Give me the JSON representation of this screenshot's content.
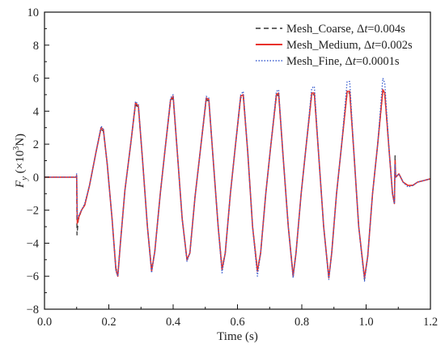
{
  "chart_data": {
    "type": "line",
    "xlabel": "Time (s)",
    "ylabel": "F_y (×10³N)",
    "ylabel_parts": {
      "sym": "F",
      "sub": "y",
      "unit_pre": " (×10",
      "sup": "3",
      "unit_post": "N)"
    },
    "xlim": [
      0.0,
      1.2
    ],
    "ylim": [
      -8,
      10
    ],
    "xticks": [
      "0.0",
      "0.2",
      "0.4",
      "0.6",
      "0.8",
      "1.0",
      "1.2"
    ],
    "yticks": [
      "−8",
      "−6",
      "−4",
      "−2",
      "0",
      "2",
      "4",
      "6",
      "8",
      "10"
    ],
    "grid": false,
    "legend_position": "top-right",
    "legend": [
      {
        "label": "Mesh_Coarse, Δt=0.004s",
        "parts": [
          "Mesh_Coarse, Δ",
          "t",
          "=0.004s"
        ],
        "color": "#333333",
        "style": "dashed"
      },
      {
        "label": "Mesh_Medium, Δt=0.002s",
        "parts": [
          "Mesh_Medium, Δ",
          "t",
          "=0.002s"
        ],
        "color": "#e8312b",
        "style": "solid"
      },
      {
        "label": "Mesh_Fine, Δt=0.0001s",
        "parts": [
          "Mesh_Fine, Δ",
          "t",
          "=0.0001s"
        ],
        "color": "#3b5fcf",
        "style": "dotted"
      }
    ],
    "series": [
      {
        "name": "Mesh_Coarse, Δt=0.004s",
        "color": "#333333",
        "style": "dashed",
        "points": [
          [
            0.0,
            0.0
          ],
          [
            0.098,
            0.0
          ],
          [
            0.1,
            0.1
          ],
          [
            0.101,
            -3.5
          ],
          [
            0.105,
            -2.6
          ],
          [
            0.115,
            -2.0
          ],
          [
            0.125,
            -1.7
          ],
          [
            0.14,
            -0.5
          ],
          [
            0.16,
            1.5
          ],
          [
            0.175,
            2.9
          ],
          [
            0.183,
            2.8
          ],
          [
            0.195,
            0.8
          ],
          [
            0.21,
            -2.5
          ],
          [
            0.222,
            -5.5
          ],
          [
            0.228,
            -5.9
          ],
          [
            0.236,
            -4.0
          ],
          [
            0.25,
            -0.8
          ],
          [
            0.268,
            2.0
          ],
          [
            0.283,
            4.4
          ],
          [
            0.292,
            4.2
          ],
          [
            0.305,
            1.0
          ],
          [
            0.32,
            -3.0
          ],
          [
            0.333,
            -5.6
          ],
          [
            0.343,
            -4.5
          ],
          [
            0.36,
            -1.0
          ],
          [
            0.375,
            1.7
          ],
          [
            0.392,
            4.6
          ],
          [
            0.4,
            4.8
          ],
          [
            0.413,
            1.5
          ],
          [
            0.428,
            -2.5
          ],
          [
            0.443,
            -5.0
          ],
          [
            0.452,
            -4.6
          ],
          [
            0.468,
            -1.2
          ],
          [
            0.485,
            1.7
          ],
          [
            0.503,
            4.7
          ],
          [
            0.511,
            4.6
          ],
          [
            0.524,
            1.2
          ],
          [
            0.54,
            -3.0
          ],
          [
            0.552,
            -5.5
          ],
          [
            0.562,
            -4.6
          ],
          [
            0.578,
            -1.0
          ],
          [
            0.593,
            1.8
          ],
          [
            0.61,
            4.8
          ],
          [
            0.618,
            4.9
          ],
          [
            0.632,
            1.5
          ],
          [
            0.647,
            -3.0
          ],
          [
            0.662,
            -5.6
          ],
          [
            0.672,
            -4.6
          ],
          [
            0.688,
            -1.0
          ],
          [
            0.703,
            1.8
          ],
          [
            0.721,
            4.9
          ],
          [
            0.728,
            5.0
          ],
          [
            0.741,
            1.5
          ],
          [
            0.758,
            -3.0
          ],
          [
            0.773,
            -5.9
          ],
          [
            0.782,
            -4.6
          ],
          [
            0.798,
            -1.0
          ],
          [
            0.813,
            1.8
          ],
          [
            0.831,
            5.0
          ],
          [
            0.839,
            5.0
          ],
          [
            0.852,
            1.5
          ],
          [
            0.868,
            -3.0
          ],
          [
            0.884,
            -6.1
          ],
          [
            0.893,
            -4.6
          ],
          [
            0.908,
            -1.0
          ],
          [
            0.923,
            1.8
          ],
          [
            0.941,
            5.1
          ],
          [
            0.949,
            5.1
          ],
          [
            0.962,
            1.5
          ],
          [
            0.977,
            -3.0
          ],
          [
            0.995,
            -6.2
          ],
          [
            1.005,
            -4.8
          ],
          [
            1.02,
            -1.0
          ],
          [
            1.036,
            2.0
          ],
          [
            1.052,
            5.2
          ],
          [
            1.058,
            5.0
          ],
          [
            1.072,
            1.5
          ],
          [
            1.082,
            -1.0
          ],
          [
            1.088,
            -1.6
          ],
          [
            1.09,
            1.3
          ],
          [
            1.092,
            0.0
          ],
          [
            1.102,
            0.2
          ],
          [
            1.115,
            -0.3
          ],
          [
            1.13,
            -0.5
          ],
          [
            1.145,
            -0.5
          ],
          [
            1.16,
            -0.3
          ],
          [
            1.18,
            -0.2
          ],
          [
            1.2,
            -0.1
          ]
        ]
      },
      {
        "name": "Mesh_Medium, Δt=0.002s",
        "color": "#e8312b",
        "style": "solid",
        "points": [
          [
            0.0,
            0.0
          ],
          [
            0.098,
            0.0
          ],
          [
            0.1,
            0.1
          ],
          [
            0.102,
            -2.8
          ],
          [
            0.107,
            -2.4
          ],
          [
            0.115,
            -2.0
          ],
          [
            0.125,
            -1.7
          ],
          [
            0.14,
            -0.5
          ],
          [
            0.16,
            1.5
          ],
          [
            0.176,
            3.0
          ],
          [
            0.183,
            2.9
          ],
          [
            0.195,
            0.8
          ],
          [
            0.21,
            -2.5
          ],
          [
            0.222,
            -5.6
          ],
          [
            0.228,
            -6.0
          ],
          [
            0.236,
            -4.0
          ],
          [
            0.25,
            -0.8
          ],
          [
            0.268,
            2.0
          ],
          [
            0.283,
            4.5
          ],
          [
            0.292,
            4.3
          ],
          [
            0.305,
            1.0
          ],
          [
            0.32,
            -3.0
          ],
          [
            0.333,
            -5.7
          ],
          [
            0.343,
            -4.5
          ],
          [
            0.36,
            -1.0
          ],
          [
            0.375,
            1.7
          ],
          [
            0.392,
            4.7
          ],
          [
            0.4,
            4.9
          ],
          [
            0.413,
            1.5
          ],
          [
            0.428,
            -2.5
          ],
          [
            0.443,
            -5.0
          ],
          [
            0.452,
            -4.6
          ],
          [
            0.468,
            -1.2
          ],
          [
            0.485,
            1.7
          ],
          [
            0.503,
            4.8
          ],
          [
            0.511,
            4.7
          ],
          [
            0.524,
            1.2
          ],
          [
            0.54,
            -3.0
          ],
          [
            0.552,
            -5.6
          ],
          [
            0.562,
            -4.6
          ],
          [
            0.578,
            -1.0
          ],
          [
            0.593,
            1.8
          ],
          [
            0.61,
            4.9
          ],
          [
            0.618,
            5.0
          ],
          [
            0.632,
            1.5
          ],
          [
            0.647,
            -3.0
          ],
          [
            0.662,
            -5.7
          ],
          [
            0.672,
            -4.6
          ],
          [
            0.688,
            -1.0
          ],
          [
            0.703,
            1.8
          ],
          [
            0.721,
            5.0
          ],
          [
            0.728,
            5.1
          ],
          [
            0.741,
            1.5
          ],
          [
            0.758,
            -3.0
          ],
          [
            0.773,
            -6.0
          ],
          [
            0.782,
            -4.6
          ],
          [
            0.798,
            -1.0
          ],
          [
            0.813,
            1.8
          ],
          [
            0.831,
            5.1
          ],
          [
            0.839,
            5.1
          ],
          [
            0.852,
            1.5
          ],
          [
            0.868,
            -3.0
          ],
          [
            0.884,
            -6.1
          ],
          [
            0.893,
            -4.6
          ],
          [
            0.908,
            -1.0
          ],
          [
            0.923,
            1.8
          ],
          [
            0.941,
            5.2
          ],
          [
            0.949,
            5.2
          ],
          [
            0.962,
            1.5
          ],
          [
            0.977,
            -3.0
          ],
          [
            0.995,
            -6.1
          ],
          [
            1.005,
            -4.8
          ],
          [
            1.02,
            -1.0
          ],
          [
            1.036,
            2.0
          ],
          [
            1.052,
            5.3
          ],
          [
            1.058,
            5.1
          ],
          [
            1.072,
            1.5
          ],
          [
            1.082,
            -1.0
          ],
          [
            1.088,
            -1.6
          ],
          [
            1.09,
            1.0
          ],
          [
            1.092,
            0.0
          ],
          [
            1.102,
            0.2
          ],
          [
            1.115,
            -0.3
          ],
          [
            1.13,
            -0.5
          ],
          [
            1.145,
            -0.5
          ],
          [
            1.16,
            -0.3
          ],
          [
            1.18,
            -0.2
          ],
          [
            1.2,
            -0.1
          ]
        ]
      },
      {
        "name": "Mesh_Fine, Δt=0.0001s",
        "color": "#3b5fcf",
        "style": "dotted",
        "points": [
          [
            0.0,
            0.0
          ],
          [
            0.098,
            0.0
          ],
          [
            0.1,
            0.2
          ],
          [
            0.102,
            -2.5
          ],
          [
            0.107,
            -2.3
          ],
          [
            0.115,
            -2.0
          ],
          [
            0.125,
            -1.6
          ],
          [
            0.14,
            -0.5
          ],
          [
            0.16,
            1.5
          ],
          [
            0.176,
            3.1
          ],
          [
            0.183,
            2.9
          ],
          [
            0.195,
            0.8
          ],
          [
            0.21,
            -2.5
          ],
          [
            0.222,
            -5.7
          ],
          [
            0.228,
            -6.0
          ],
          [
            0.236,
            -4.0
          ],
          [
            0.25,
            -0.8
          ],
          [
            0.268,
            2.0
          ],
          [
            0.283,
            4.6
          ],
          [
            0.292,
            4.4
          ],
          [
            0.305,
            1.0
          ],
          [
            0.32,
            -3.0
          ],
          [
            0.333,
            -5.8
          ],
          [
            0.343,
            -4.5
          ],
          [
            0.36,
            -1.0
          ],
          [
            0.375,
            1.7
          ],
          [
            0.392,
            4.8
          ],
          [
            0.4,
            5.0
          ],
          [
            0.413,
            1.5
          ],
          [
            0.428,
            -2.5
          ],
          [
            0.443,
            -5.1
          ],
          [
            0.452,
            -4.6
          ],
          [
            0.468,
            -1.2
          ],
          [
            0.485,
            1.7
          ],
          [
            0.503,
            4.9
          ],
          [
            0.511,
            4.8
          ],
          [
            0.524,
            1.2
          ],
          [
            0.54,
            -3.0
          ],
          [
            0.552,
            -5.8
          ],
          [
            0.562,
            -4.6
          ],
          [
            0.578,
            -1.0
          ],
          [
            0.593,
            1.8
          ],
          [
            0.61,
            5.0
          ],
          [
            0.618,
            5.2
          ],
          [
            0.632,
            1.5
          ],
          [
            0.647,
            -3.0
          ],
          [
            0.662,
            -6.0
          ],
          [
            0.672,
            -4.6
          ],
          [
            0.688,
            -1.0
          ],
          [
            0.703,
            1.8
          ],
          [
            0.721,
            5.2
          ],
          [
            0.728,
            5.3
          ],
          [
            0.741,
            1.5
          ],
          [
            0.758,
            -3.0
          ],
          [
            0.773,
            -6.1
          ],
          [
            0.782,
            -4.6
          ],
          [
            0.798,
            -1.0
          ],
          [
            0.813,
            1.8
          ],
          [
            0.831,
            5.4
          ],
          [
            0.839,
            5.5
          ],
          [
            0.852,
            1.5
          ],
          [
            0.868,
            -3.0
          ],
          [
            0.884,
            -6.2
          ],
          [
            0.893,
            -4.6
          ],
          [
            0.908,
            -1.0
          ],
          [
            0.923,
            1.8
          ],
          [
            0.941,
            5.8
          ],
          [
            0.949,
            5.8
          ],
          [
            0.962,
            1.5
          ],
          [
            0.977,
            -3.0
          ],
          [
            0.995,
            -6.3
          ],
          [
            1.005,
            -4.8
          ],
          [
            1.02,
            -1.0
          ],
          [
            1.036,
            2.0
          ],
          [
            1.052,
            6.0
          ],
          [
            1.058,
            5.7
          ],
          [
            1.072,
            1.5
          ],
          [
            1.082,
            -1.0
          ],
          [
            1.088,
            -1.6
          ],
          [
            1.09,
            0.8
          ],
          [
            1.092,
            0.0
          ],
          [
            1.102,
            0.2
          ],
          [
            1.115,
            -0.3
          ],
          [
            1.13,
            -0.6
          ],
          [
            1.145,
            -0.5
          ],
          [
            1.16,
            -0.3
          ],
          [
            1.18,
            -0.2
          ],
          [
            1.2,
            -0.1
          ]
        ]
      }
    ]
  }
}
